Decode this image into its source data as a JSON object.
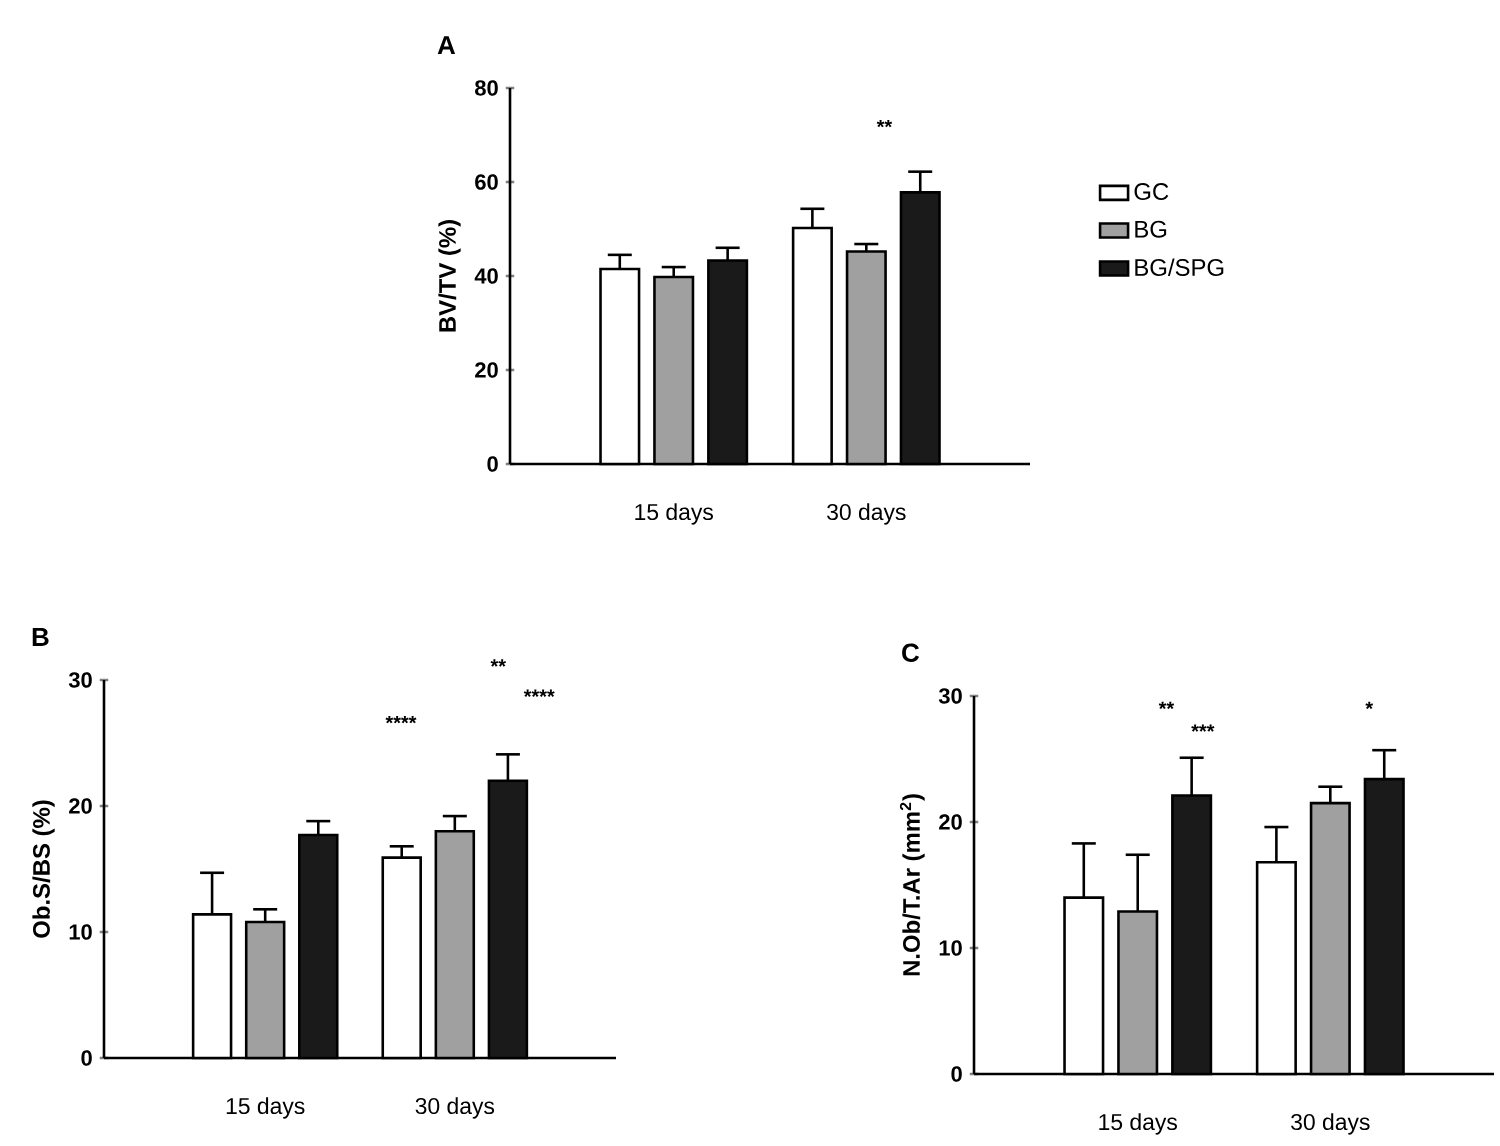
{
  "chart_data": [
    {
      "type": "bar",
      "title": "A",
      "ylabel": "BV/TV (%)",
      "categories": [
        "15 days",
        "30 days"
      ],
      "ylim": [
        0,
        80
      ],
      "yticks": [
        0,
        20,
        40,
        60,
        80
      ],
      "legend": "right",
      "series": [
        {
          "name": "GC",
          "color": "#ffffff",
          "values": [
            41.5,
            50.2
          ],
          "errors": [
            [
              41.5,
              44.5
            ],
            [
              50.2,
              54.3
            ]
          ]
        },
        {
          "name": "BG",
          "color": "#a0a0a0",
          "values": [
            39.8,
            45.2
          ],
          "errors": [
            [
              39.8,
              41.9
            ],
            [
              45.2,
              46.8
            ]
          ]
        },
        {
          "name": "BG/SPG",
          "color": "#1a1a1a",
          "values": [
            43.3,
            57.8
          ],
          "errors": [
            [
              43.3,
              46.0
            ],
            [
              57.8,
              62.2
            ]
          ]
        }
      ],
      "annotations": [
        "**"
      ]
    },
    {
      "type": "bar",
      "title": "B",
      "ylabel": "Ob.S/BS (%)",
      "categories": [
        "15 days",
        "30 days"
      ],
      "ylim": [
        0,
        30
      ],
      "yticks": [
        0,
        10,
        20,
        30
      ],
      "series": [
        {
          "color": "#ffffff",
          "values": [
            11.4,
            15.9
          ],
          "errors": [
            [
              11.4,
              14.7
            ],
            [
              15.9,
              16.8
            ]
          ]
        },
        {
          "color": "#a0a0a0",
          "values": [
            10.8,
            18.0
          ],
          "errors": [
            [
              10.8,
              11.8
            ],
            [
              18.0,
              19.2
            ]
          ]
        },
        {
          "color": "#1a1a1a",
          "values": [
            17.7,
            22.0
          ],
          "errors": [
            [
              17.7,
              18.8
            ],
            [
              22.0,
              24.1
            ]
          ]
        }
      ],
      "annotations": [
        "****",
        "**",
        "****"
      ]
    },
    {
      "type": "bar",
      "title": "C",
      "ylabel": "N.Ob/T.Ar (mm$^{2}$)",
      "categories": [
        "15 days",
        "30 days"
      ],
      "ylim": [
        0,
        30
      ],
      "yticks": [
        0,
        10,
        20,
        30
      ],
      "series": [
        {
          "color": "#ffffff",
          "values": [
            14.0,
            16.8
          ],
          "errors": [
            [
              14.0,
              18.3
            ],
            [
              16.8,
              19.6
            ]
          ]
        },
        {
          "color": "#a0a0a0",
          "values": [
            12.9,
            21.5
          ],
          "errors": [
            [
              12.9,
              17.4
            ],
            [
              21.5,
              22.8
            ]
          ]
        },
        {
          "color": "#1a1a1a",
          "values": [
            22.1,
            23.4
          ],
          "errors": [
            [
              22.1,
              25.1
            ],
            [
              23.4,
              25.7
            ]
          ]
        }
      ],
      "annotations": [
        "**",
        "***",
        "*"
      ]
    }
  ]
}
